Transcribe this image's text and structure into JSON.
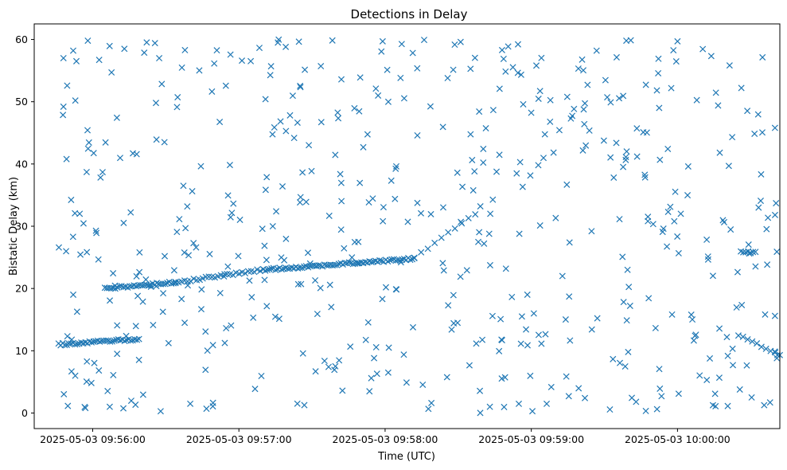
{
  "chart_data": {
    "type": "scatter",
    "title": "Detections in Delay",
    "xlabel": "Time (UTC)",
    "ylabel": "Bistatic Delay (km)",
    "marker": "x",
    "color": "#1f77b4",
    "grid": false,
    "xlim": [
      "2025-05-03 09:55:36",
      "2025-05-03 10:00:42"
    ],
    "ylim": [
      -2.5,
      62.5
    ],
    "x_ticks": [
      "2025-05-03 09:56:00",
      "2025-05-03 09:57:00",
      "2025-05-03 09:58:00",
      "2025-05-03 09:59:00",
      "2025-05-03 10:00:00"
    ],
    "y_ticks": [
      0,
      10,
      20,
      30,
      40,
      50,
      60
    ],
    "tracks": [
      {
        "start": "2025-05-03 09:55:46",
        "end": "2025-05-03 09:56:19",
        "y_start": 11.0,
        "y_end": 11.9,
        "count": 40
      },
      {
        "start": "2025-05-03 09:56:05",
        "end": "2025-05-03 09:56:34",
        "y_start": 20.0,
        "y_end": 21.0,
        "count": 35
      },
      {
        "start": "2025-05-03 09:56:34",
        "end": "2025-05-03 09:57:10",
        "y_start": 21.0,
        "y_end": 23.0,
        "count": 30
      },
      {
        "start": "2025-05-03 09:57:10",
        "end": "2025-05-03 09:58:12",
        "y_start": 23.0,
        "y_end": 24.8,
        "count": 75
      },
      {
        "start": "2025-05-03 09:58:12",
        "end": "2025-05-03 09:58:37",
        "y_start": 25.0,
        "y_end": 32.0,
        "count": 10
      },
      {
        "start": "2025-05-03 10:00:26",
        "end": "2025-05-03 10:00:32",
        "y_start": 26.0,
        "y_end": 25.8,
        "count": 7
      },
      {
        "start": "2025-05-03 10:00:25",
        "end": "2025-05-03 10:00:42",
        "y_start": 12.5,
        "y_end": 9.3,
        "count": 10
      }
    ],
    "clutter": {
      "description": "uniformly scattered false detections",
      "count": 520,
      "x_range": [
        "2025-05-03 09:55:46",
        "2025-05-03 10:00:42"
      ],
      "y_range": [
        0,
        60
      ]
    },
    "points": [
      [
        "2025-05-03 09:55:57",
        0.8
      ],
      [
        "2025-05-03 09:56:07",
        1.0
      ],
      [
        "2025-05-03 09:57:24",
        1.5
      ],
      [
        "2025-05-03 09:58:19",
        1.6
      ],
      [
        "2025-05-03 09:58:43",
        1.0
      ],
      [
        "2025-05-03 09:59:22",
        2.4
      ],
      [
        "2025-05-03 09:59:43",
        1.8
      ],
      [
        "2025-05-03 10:00:38",
        1.7
      ],
      [
        "2025-05-03 09:55:58",
        59.8
      ],
      [
        "2025-05-03 09:55:52",
        58.2
      ],
      [
        "2025-05-03 09:56:13",
        58.5
      ],
      [
        "2025-05-03 09:57:16",
        59.5
      ],
      [
        "2025-05-03 09:57:59",
        59.7
      ],
      [
        "2025-05-03 09:58:31",
        59.6
      ],
      [
        "2025-05-03 09:59:39",
        59.8
      ],
      [
        "2025-05-03 10:00:00",
        59.7
      ],
      [
        "2025-05-03 09:55:48",
        49.2
      ],
      [
        "2025-05-03 09:55:48",
        57.0
      ],
      [
        "2025-05-03 10:00:40",
        45.8
      ],
      [
        "2025-05-03 10:00:40",
        15.6
      ],
      [
        "2025-05-03 10:00:41",
        9.3
      ]
    ]
  }
}
